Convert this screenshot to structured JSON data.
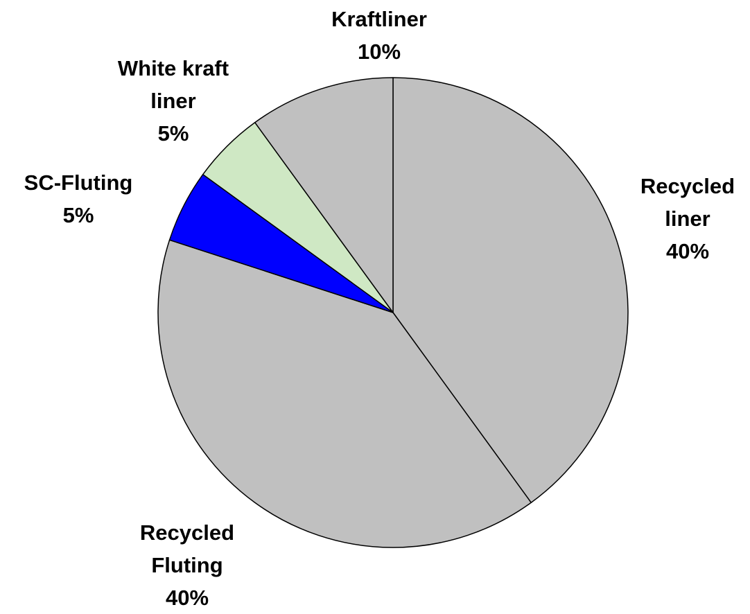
{
  "chart_data": {
    "type": "pie",
    "categories": [
      "Recycled liner",
      "Recycled Fluting",
      "SC-Fluting",
      "White kraft liner",
      "Kraftliner"
    ],
    "values": [
      40,
      40,
      5,
      5,
      10
    ],
    "value_labels": [
      "40%",
      "40%",
      "5%",
      "5%",
      "10%"
    ],
    "colors": [
      "#c0c0c0",
      "#c0c0c0",
      "#0000ff",
      "#cfe8c4",
      "#c0c0c0"
    ]
  }
}
